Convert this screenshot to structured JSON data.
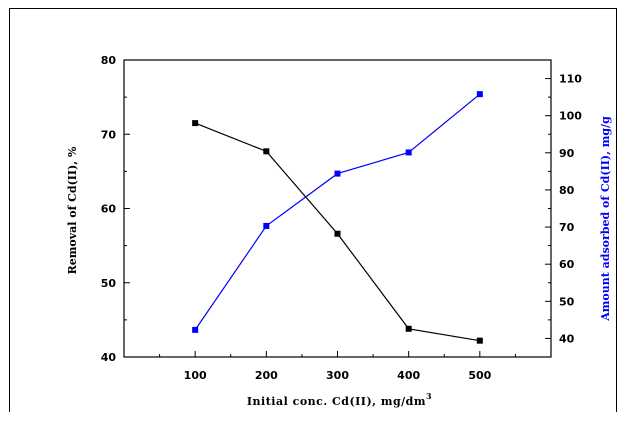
{
  "chart_data": {
    "type": "line",
    "x": [
      100,
      200,
      300,
      400,
      500
    ],
    "xlabel": "Initial conc. Cd(II), mg/dm",
    "xlabel_sup": "3",
    "xlim": [
      0,
      600
    ],
    "xticks": [
      100,
      200,
      300,
      400,
      500
    ],
    "y_left": {
      "label": "Removal of Cd(II), %",
      "lim": [
        40,
        80
      ],
      "ticks": [
        40,
        50,
        60,
        70,
        80
      ],
      "color": "#000000"
    },
    "y_right": {
      "label": "Amount adsorbed of Cd(II), mg/g",
      "lim": [
        35,
        115
      ],
      "ticks": [
        40,
        50,
        60,
        70,
        80,
        90,
        100,
        110
      ],
      "color": "#0000ff"
    },
    "series": [
      {
        "axis": "left",
        "color": "#000000",
        "values": [
          71.5,
          67.7,
          56.6,
          43.8,
          42.2
        ]
      },
      {
        "axis": "right",
        "color": "#0000ff",
        "values": [
          42.3,
          70.3,
          84.4,
          90.1,
          105.8
        ]
      }
    ],
    "grid": false,
    "legend": "none"
  }
}
